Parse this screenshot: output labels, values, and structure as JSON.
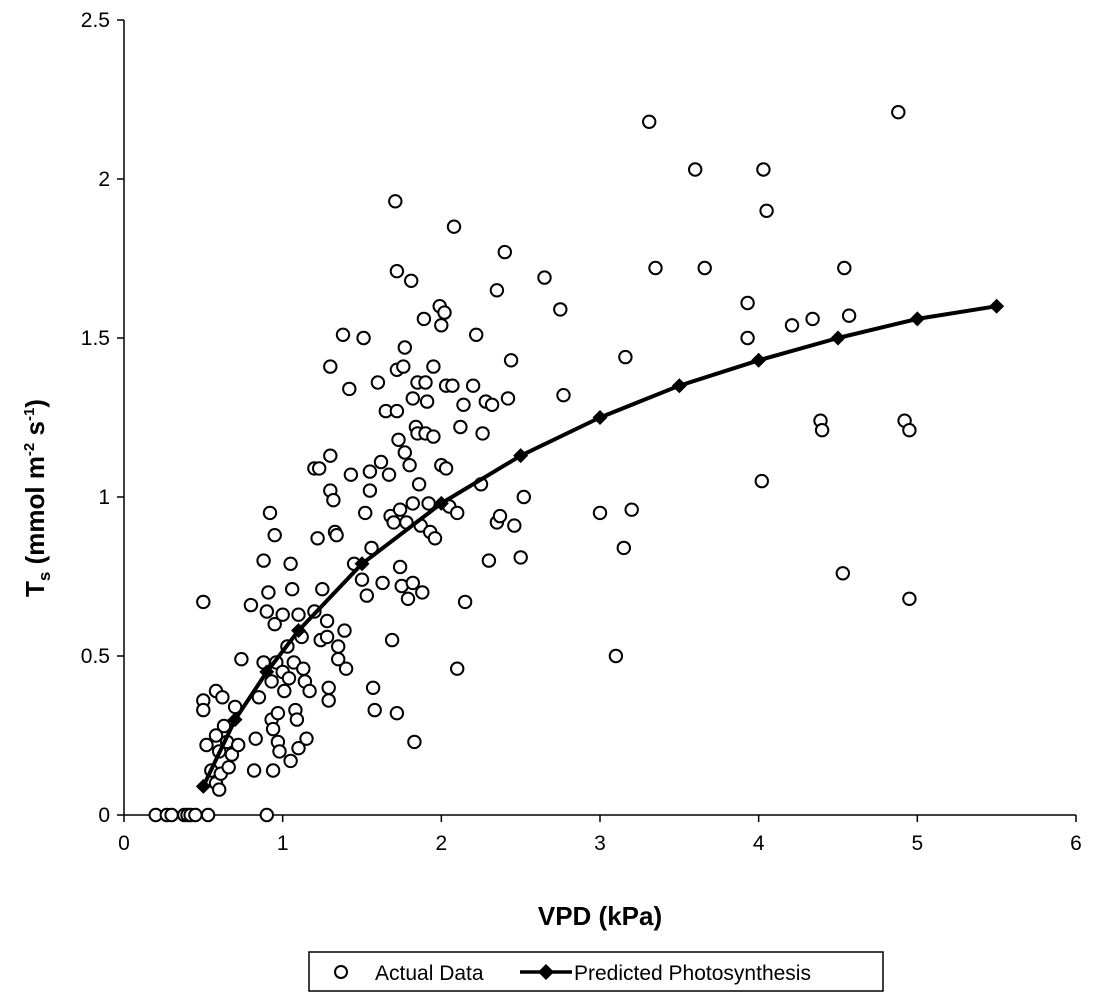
{
  "chart_data": {
    "type": "scatter",
    "xlabel": "VPD (kPa)",
    "ylabel": {
      "main": "T",
      "sub": "s",
      "rest": " (mmol m",
      "exp1": "-2",
      "mid": " s",
      "exp2": "-1",
      "end": ")"
    },
    "xlim": [
      0,
      6
    ],
    "ylim": [
      0,
      2.5
    ],
    "x_ticks": [
      "0",
      "1",
      "2",
      "3",
      "4",
      "5",
      "6"
    ],
    "y_ticks": [
      "0",
      "0.5",
      "1",
      "1.5",
      "2",
      "2.5"
    ],
    "grid": false,
    "legend_position": "bottom",
    "series": [
      {
        "name": "Actual Data",
        "marker": "open-circle",
        "color": "#000000",
        "points": [
          [
            0.2,
            0
          ],
          [
            0.27,
            0
          ],
          [
            0.3,
            0
          ],
          [
            0.38,
            0
          ],
          [
            0.4,
            0
          ],
          [
            0.42,
            0
          ],
          [
            0.45,
            0
          ],
          [
            0.53,
            0
          ],
          [
            0.9,
            0
          ],
          [
            0.5,
            0.67
          ],
          [
            0.5,
            0.36
          ],
          [
            0.5,
            0.33
          ],
          [
            0.52,
            0.22
          ],
          [
            0.55,
            0.14
          ],
          [
            0.58,
            0.1
          ],
          [
            0.6,
            0.08
          ],
          [
            0.58,
            0.39
          ],
          [
            0.58,
            0.25
          ],
          [
            0.6,
            0.2
          ],
          [
            0.61,
            0.13
          ],
          [
            0.62,
            0.37
          ],
          [
            0.63,
            0.28
          ],
          [
            0.65,
            0.23
          ],
          [
            0.66,
            0.15
          ],
          [
            0.68,
            0.19
          ],
          [
            0.7,
            0.34
          ],
          [
            0.72,
            0.22
          ],
          [
            0.74,
            0.49
          ],
          [
            0.8,
            0.66
          ],
          [
            0.82,
            0.14
          ],
          [
            0.83,
            0.24
          ],
          [
            0.85,
            0.37
          ],
          [
            0.88,
            0.8
          ],
          [
            0.88,
            0.48
          ],
          [
            0.9,
            0.64
          ],
          [
            0.91,
            0.7
          ],
          [
            0.92,
            0.95
          ],
          [
            0.93,
            0.42
          ],
          [
            0.93,
            0.3
          ],
          [
            0.94,
            0.27
          ],
          [
            0.94,
            0.14
          ],
          [
            0.95,
            0.6
          ],
          [
            0.95,
            0.88
          ],
          [
            0.96,
            0.48
          ],
          [
            0.97,
            0.32
          ],
          [
            0.97,
            0.23
          ],
          [
            0.98,
            0.2
          ],
          [
            1.0,
            0.63
          ],
          [
            1.0,
            0.45
          ],
          [
            1.01,
            0.39
          ],
          [
            1.03,
            0.53
          ],
          [
            1.04,
            0.43
          ],
          [
            1.05,
            0.79
          ],
          [
            1.05,
            0.17
          ],
          [
            1.06,
            0.71
          ],
          [
            1.07,
            0.48
          ],
          [
            1.08,
            0.33
          ],
          [
            1.09,
            0.3
          ],
          [
            1.1,
            0.21
          ],
          [
            1.1,
            0.63
          ],
          [
            1.12,
            0.56
          ],
          [
            1.13,
            0.46
          ],
          [
            1.14,
            0.42
          ],
          [
            1.15,
            0.24
          ],
          [
            1.17,
            0.39
          ],
          [
            1.2,
            1.09
          ],
          [
            1.2,
            0.64
          ],
          [
            1.22,
            0.87
          ],
          [
            1.23,
            1.09
          ],
          [
            1.24,
            0.55
          ],
          [
            1.25,
            0.71
          ],
          [
            1.28,
            0.61
          ],
          [
            1.28,
            0.56
          ],
          [
            1.29,
            0.36
          ],
          [
            1.29,
            0.4
          ],
          [
            1.3,
            1.41
          ],
          [
            1.3,
            1.13
          ],
          [
            1.3,
            1.02
          ],
          [
            1.32,
            0.99
          ],
          [
            1.33,
            0.89
          ],
          [
            1.34,
            0.88
          ],
          [
            1.35,
            0.53
          ],
          [
            1.35,
            0.49
          ],
          [
            1.38,
            1.51
          ],
          [
            1.39,
            0.58
          ],
          [
            1.4,
            0.46
          ],
          [
            1.42,
            1.34
          ],
          [
            1.43,
            1.07
          ],
          [
            1.45,
            0.79
          ],
          [
            1.5,
            0.74
          ],
          [
            1.51,
            1.5
          ],
          [
            1.52,
            0.95
          ],
          [
            1.53,
            0.69
          ],
          [
            1.55,
            1.08
          ],
          [
            1.55,
            1.02
          ],
          [
            1.56,
            0.84
          ],
          [
            1.57,
            0.4
          ],
          [
            1.58,
            0.33
          ],
          [
            1.6,
            1.36
          ],
          [
            1.62,
            1.11
          ],
          [
            1.63,
            0.73
          ],
          [
            1.65,
            1.27
          ],
          [
            1.67,
            1.07
          ],
          [
            1.68,
            0.94
          ],
          [
            1.69,
            0.55
          ],
          [
            1.7,
            0.92
          ],
          [
            1.71,
            1.93
          ],
          [
            1.72,
            1.71
          ],
          [
            1.72,
            1.4
          ],
          [
            1.72,
            1.27
          ],
          [
            1.72,
            0.32
          ],
          [
            1.73,
            1.18
          ],
          [
            1.74,
            0.96
          ],
          [
            1.74,
            0.78
          ],
          [
            1.75,
            0.72
          ],
          [
            1.76,
            1.41
          ],
          [
            1.77,
            1.47
          ],
          [
            1.77,
            1.14
          ],
          [
            1.78,
            0.92
          ],
          [
            1.79,
            0.68
          ],
          [
            1.8,
            1.1
          ],
          [
            1.81,
            1.68
          ],
          [
            1.82,
            1.31
          ],
          [
            1.82,
            0.98
          ],
          [
            1.82,
            0.73
          ],
          [
            1.83,
            0.23
          ],
          [
            1.84,
            1.22
          ],
          [
            1.85,
            1.36
          ],
          [
            1.85,
            1.2
          ],
          [
            1.86,
            1.04
          ],
          [
            1.87,
            0.91
          ],
          [
            1.88,
            0.7
          ],
          [
            1.89,
            1.56
          ],
          [
            1.9,
            1.36
          ],
          [
            1.9,
            1.2
          ],
          [
            1.91,
            1.3
          ],
          [
            1.92,
            0.98
          ],
          [
            1.93,
            0.89
          ],
          [
            1.95,
            1.41
          ],
          [
            1.95,
            1.19
          ],
          [
            1.96,
            0.87
          ],
          [
            1.99,
            1.6
          ],
          [
            2.0,
            1.54
          ],
          [
            2.0,
            1.1
          ],
          [
            2.02,
            1.58
          ],
          [
            2.03,
            1.35
          ],
          [
            2.03,
            1.09
          ],
          [
            2.05,
            0.97
          ],
          [
            2.07,
            1.35
          ],
          [
            2.08,
            1.85
          ],
          [
            2.1,
            0.95
          ],
          [
            2.1,
            0.46
          ],
          [
            2.12,
            1.22
          ],
          [
            2.14,
            1.29
          ],
          [
            2.15,
            0.67
          ],
          [
            2.2,
            1.35
          ],
          [
            2.22,
            1.51
          ],
          [
            2.25,
            1.04
          ],
          [
            2.26,
            1.2
          ],
          [
            2.28,
            1.3
          ],
          [
            2.3,
            0.8
          ],
          [
            2.32,
            1.29
          ],
          [
            2.35,
            1.65
          ],
          [
            2.35,
            0.92
          ],
          [
            2.37,
            0.94
          ],
          [
            2.4,
            1.77
          ],
          [
            2.42,
            1.31
          ],
          [
            2.44,
            1.43
          ],
          [
            2.46,
            0.91
          ],
          [
            2.5,
            0.81
          ],
          [
            2.52,
            1.0
          ],
          [
            2.65,
            1.69
          ],
          [
            2.75,
            1.59
          ],
          [
            2.77,
            1.32
          ],
          [
            3.0,
            0.95
          ],
          [
            3.1,
            0.5
          ],
          [
            3.15,
            0.84
          ],
          [
            3.16,
            1.44
          ],
          [
            3.2,
            0.96
          ],
          [
            3.31,
            2.18
          ],
          [
            3.35,
            1.72
          ],
          [
            3.6,
            2.03
          ],
          [
            3.66,
            1.72
          ],
          [
            3.93,
            1.61
          ],
          [
            3.93,
            1.5
          ],
          [
            4.02,
            1.05
          ],
          [
            4.03,
            2.03
          ],
          [
            4.05,
            1.9
          ],
          [
            4.21,
            1.54
          ],
          [
            4.34,
            1.56
          ],
          [
            4.39,
            1.24
          ],
          [
            4.4,
            1.21
          ],
          [
            4.53,
            0.76
          ],
          [
            4.54,
            1.72
          ],
          [
            4.57,
            1.57
          ],
          [
            4.88,
            2.21
          ],
          [
            4.92,
            1.24
          ],
          [
            4.95,
            1.21
          ],
          [
            4.95,
            0.68
          ]
        ]
      },
      {
        "name": "Predicted Photosynthesis",
        "marker": "filled-diamond",
        "color": "#000000",
        "points": [
          [
            0.5,
            0.09
          ],
          [
            0.7,
            0.3
          ],
          [
            0.9,
            0.45
          ],
          [
            1.1,
            0.58
          ],
          [
            1.5,
            0.79
          ],
          [
            2.0,
            0.98
          ],
          [
            2.5,
            1.13
          ],
          [
            3.0,
            1.25
          ],
          [
            3.5,
            1.35
          ],
          [
            4.0,
            1.43
          ],
          [
            4.5,
            1.5
          ],
          [
            5.0,
            1.56
          ],
          [
            5.5,
            1.6
          ]
        ]
      }
    ]
  }
}
